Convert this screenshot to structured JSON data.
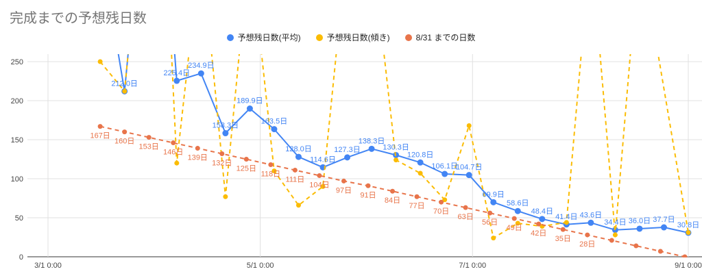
{
  "title": "完成までの予想残日数",
  "colors": {
    "avg": "#4285F4",
    "slope": "#FBBC04",
    "days_to_deadline": "#E8744A",
    "grid": "#e0e0e0",
    "axis": "#333333"
  },
  "legend": [
    {
      "label": "予想残日数(平均)",
      "color": "#4285F4"
    },
    {
      "label": "予想残日数(傾き)",
      "color": "#FBBC04"
    },
    {
      "label": "8/31 までの日数",
      "color": "#E8744A"
    }
  ],
  "chart_data": {
    "type": "line",
    "title": "完成までの予想残日数",
    "xlabel": "",
    "ylabel": "",
    "x_range": [
      "2022-03-01",
      "2022-09-01"
    ],
    "ylim": [
      0,
      250
    ],
    "y_ticks": [
      0,
      50,
      100,
      150,
      200,
      250
    ],
    "x_ticks": [
      {
        "date": "2022-03-01",
        "label": "3/1 0:00"
      },
      {
        "date": "2022-05-01",
        "label": "5/1 0:00"
      },
      {
        "date": "2022-07-01",
        "label": "7/1 0:00"
      },
      {
        "date": "2022-09-01",
        "label": "9/1 0:00"
      }
    ],
    "grid": true,
    "legend_position": "top",
    "series": [
      {
        "name": "予想残日数(平均)",
        "color": "#4285F4",
        "style": "solid",
        "points": [
          {
            "x": "2022-03-16",
            "y": 400
          },
          {
            "x": "2022-03-23",
            "y": 212.0,
            "label": "212.0日"
          },
          {
            "x": "2022-03-27",
            "y": 400
          },
          {
            "x": "2022-04-04",
            "y": 400
          },
          {
            "x": "2022-04-07",
            "y": 225.4,
            "label": "225.4日"
          },
          {
            "x": "2022-04-14",
            "y": 234.9,
            "label": "234.9日"
          },
          {
            "x": "2022-04-21",
            "y": 158.3,
            "label": "158.3日"
          },
          {
            "x": "2022-04-28",
            "y": 189.9,
            "label": "189.9日"
          },
          {
            "x": "2022-05-05",
            "y": 163.5,
            "label": "163.5日"
          },
          {
            "x": "2022-05-12",
            "y": 128.0,
            "label": "128.0日"
          },
          {
            "x": "2022-05-19",
            "y": 114.6,
            "label": "114.6日"
          },
          {
            "x": "2022-05-26",
            "y": 127.3,
            "label": "127.3日"
          },
          {
            "x": "2022-06-02",
            "y": 138.3,
            "label": "138.3日"
          },
          {
            "x": "2022-06-09",
            "y": 130.3,
            "label": "130.3日"
          },
          {
            "x": "2022-06-16",
            "y": 120.8,
            "label": "120.8日"
          },
          {
            "x": "2022-06-23",
            "y": 106.1,
            "label": "106.1日"
          },
          {
            "x": "2022-06-30",
            "y": 104.7,
            "label": "104.7日"
          },
          {
            "x": "2022-07-07",
            "y": 69.9,
            "label": "69.9日"
          },
          {
            "x": "2022-07-14",
            "y": 58.6,
            "label": "58.6日"
          },
          {
            "x": "2022-07-21",
            "y": 48.4,
            "label": "48.4日"
          },
          {
            "x": "2022-07-28",
            "y": 41.4,
            "label": "41.4日"
          },
          {
            "x": "2022-08-04",
            "y": 43.6,
            "label": "43.6日"
          },
          {
            "x": "2022-08-11",
            "y": 34.4,
            "label": "34.4日"
          },
          {
            "x": "2022-08-18",
            "y": 36.0,
            "label": "36.0日"
          },
          {
            "x": "2022-08-25",
            "y": 37.7,
            "label": "37.7日"
          },
          {
            "x": "2022-09-01",
            "y": 30.8,
            "label": "30.8日"
          }
        ]
      },
      {
        "name": "予想残日数(傾き)",
        "color": "#FBBC04",
        "style": "dashed",
        "points": [
          {
            "x": "2022-03-16",
            "y": 250
          },
          {
            "x": "2022-03-23",
            "y": 212
          },
          {
            "x": "2022-03-27",
            "y": 400
          },
          {
            "x": "2022-04-04",
            "y": 400
          },
          {
            "x": "2022-04-07",
            "y": 120
          },
          {
            "x": "2022-04-14",
            "y": 400
          },
          {
            "x": "2022-04-21",
            "y": 77
          },
          {
            "x": "2022-04-28",
            "y": 400
          },
          {
            "x": "2022-05-05",
            "y": 110
          },
          {
            "x": "2022-05-12",
            "y": 66
          },
          {
            "x": "2022-05-19",
            "y": 90
          },
          {
            "x": "2022-05-26",
            "y": 400
          },
          {
            "x": "2022-06-02",
            "y": 400
          },
          {
            "x": "2022-06-09",
            "y": 124
          },
          {
            "x": "2022-06-16",
            "y": 107
          },
          {
            "x": "2022-06-23",
            "y": 73
          },
          {
            "x": "2022-06-30",
            "y": 168
          },
          {
            "x": "2022-07-07",
            "y": 24
          },
          {
            "x": "2022-07-14",
            "y": 43
          },
          {
            "x": "2022-07-21",
            "y": 39
          },
          {
            "x": "2022-07-28",
            "y": 44
          },
          {
            "x": "2022-08-04",
            "y": 400
          },
          {
            "x": "2022-08-11",
            "y": 28
          },
          {
            "x": "2022-08-18",
            "y": 400
          },
          {
            "x": "2022-09-01",
            "y": 31
          }
        ]
      },
      {
        "name": "8/31 までの日数",
        "color": "#E8744A",
        "style": "dashed",
        "points": [
          {
            "x": "2022-03-16",
            "y": 167,
            "label": "167日"
          },
          {
            "x": "2022-03-23",
            "y": 160,
            "label": "160日"
          },
          {
            "x": "2022-03-30",
            "y": 153,
            "label": "153日"
          },
          {
            "x": "2022-04-06",
            "y": 146,
            "label": "146日"
          },
          {
            "x": "2022-04-13",
            "y": 139,
            "label": "139日"
          },
          {
            "x": "2022-04-20",
            "y": 132,
            "label": "132日"
          },
          {
            "x": "2022-04-27",
            "y": 125,
            "label": "125日"
          },
          {
            "x": "2022-05-04",
            "y": 118,
            "label": "118日"
          },
          {
            "x": "2022-05-11",
            "y": 111,
            "label": "111日"
          },
          {
            "x": "2022-05-18",
            "y": 104,
            "label": "104日"
          },
          {
            "x": "2022-05-25",
            "y": 97,
            "label": "97日"
          },
          {
            "x": "2022-06-01",
            "y": 91,
            "label": "91日"
          },
          {
            "x": "2022-06-08",
            "y": 84,
            "label": "84日"
          },
          {
            "x": "2022-06-15",
            "y": 77,
            "label": "77日"
          },
          {
            "x": "2022-06-22",
            "y": 70,
            "label": "70日"
          },
          {
            "x": "2022-06-29",
            "y": 63,
            "label": "63日"
          },
          {
            "x": "2022-07-06",
            "y": 56,
            "label": "56日"
          },
          {
            "x": "2022-07-13",
            "y": 49,
            "label": "49日"
          },
          {
            "x": "2022-07-20",
            "y": 42,
            "label": "42日"
          },
          {
            "x": "2022-07-27",
            "y": 35,
            "label": "35日"
          },
          {
            "x": "2022-08-03",
            "y": 28,
            "label": "28日"
          },
          {
            "x": "2022-08-10",
            "y": 21
          },
          {
            "x": "2022-08-17",
            "y": 14
          },
          {
            "x": "2022-08-24",
            "y": 7
          },
          {
            "x": "2022-08-31",
            "y": 0
          }
        ]
      }
    ]
  }
}
